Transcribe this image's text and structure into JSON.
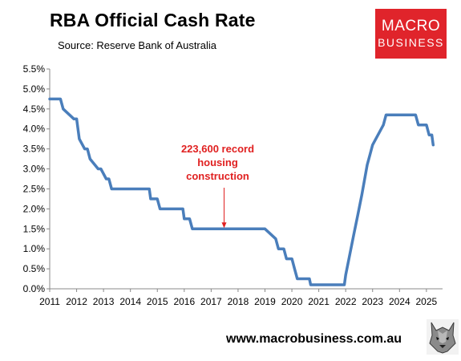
{
  "header": {
    "title": "RBA Official Cash Rate",
    "subtitle": "Source: Reserve Bank of Australia"
  },
  "logo": {
    "line1": "MACRO",
    "line2": "BUSINESS"
  },
  "footer": {
    "url": "www.macrobusiness.com.au"
  },
  "colors": {
    "line": "#4a7ebb",
    "annotation": "#e02020",
    "logo_bg": "#e0242b"
  },
  "chart_data": {
    "type": "line",
    "title": "RBA Official Cash Rate",
    "xlabel": "",
    "ylabel": "",
    "xlim": [
      2011.0,
      2025.6
    ],
    "ylim": [
      0,
      5.5
    ],
    "xticks": [
      "2011",
      "2012",
      "2013",
      "2014",
      "2015",
      "2016",
      "2017",
      "2018",
      "2019",
      "2020",
      "2021",
      "2022",
      "2023",
      "2024",
      "2025"
    ],
    "yticks": [
      "0.0%",
      "0.5%",
      "1.0%",
      "1.5%",
      "2.0%",
      "2.5%",
      "3.0%",
      "3.5%",
      "4.0%",
      "4.5%",
      "5.0%",
      "5.5%"
    ],
    "grid": false,
    "series": [
      {
        "name": "",
        "x": [
          2011.0,
          2011.4,
          2011.5,
          2011.9,
          2012.0,
          2012.1,
          2012.3,
          2012.4,
          2012.5,
          2012.8,
          2012.9,
          2013.1,
          2013.2,
          2013.3,
          2013.5,
          2013.6,
          2014.7,
          2014.75,
          2015.0,
          2015.1,
          2015.95,
          2016.0,
          2016.2,
          2016.3,
          2016.6,
          2016.7,
          2018.9,
          2019.0,
          2019.4,
          2019.5,
          2019.7,
          2019.8,
          2020.0,
          2020.1,
          2020.2,
          2020.3,
          2020.65,
          2020.7,
          2021.95,
          2022.0,
          2022.15,
          2022.3,
          2022.45,
          2022.6,
          2022.8,
          2022.9,
          2023.0,
          2023.4,
          2023.5,
          2024.6,
          2024.7,
          2025.0,
          2025.1,
          2025.2,
          2025.25
        ],
        "values": [
          4.75,
          4.75,
          4.5,
          4.25,
          4.25,
          3.75,
          3.5,
          3.5,
          3.25,
          3.0,
          3.0,
          2.75,
          2.75,
          2.5,
          2.5,
          2.5,
          2.5,
          2.25,
          2.25,
          2.0,
          2.0,
          1.75,
          1.75,
          1.5,
          1.5,
          1.5,
          1.5,
          1.5,
          1.25,
          1.0,
          1.0,
          0.75,
          0.75,
          0.5,
          0.25,
          0.25,
          0.25,
          0.1,
          0.1,
          0.35,
          0.85,
          1.35,
          1.85,
          2.35,
          3.1,
          3.35,
          3.6,
          4.1,
          4.35,
          4.35,
          4.1,
          4.1,
          3.85,
          3.85,
          3.6
        ]
      }
    ],
    "annotations": [
      {
        "text_lines": [
          "223,600 record",
          "housing",
          "construction"
        ],
        "x": 2017.6,
        "y": 1.5
      }
    ]
  }
}
